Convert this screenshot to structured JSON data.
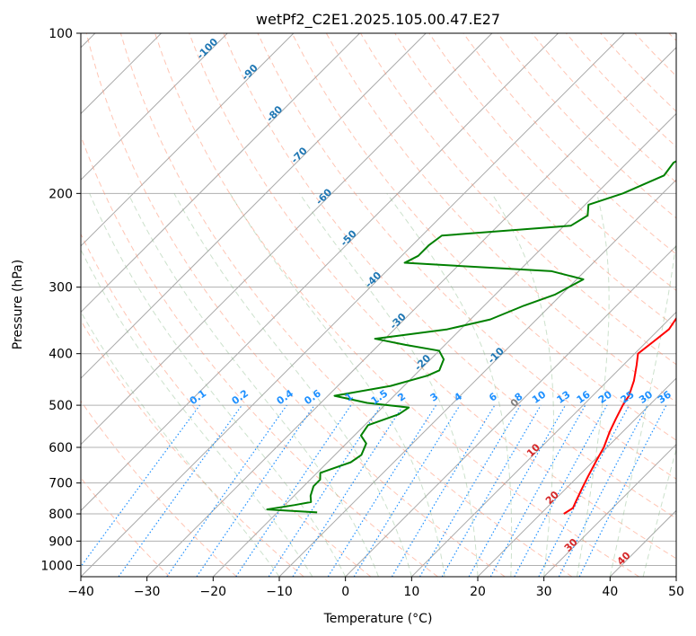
{
  "chart_data": {
    "type": "line",
    "title": "wetPf2_C2E1.2025.105.00.47.E27",
    "xlabel": "Temperature (°C)",
    "ylabel": "Pressure (hPa)",
    "xlim": [
      -40,
      50
    ],
    "ylim": [
      1050,
      100
    ],
    "y_scale": "log",
    "grid": true,
    "x_ticks": [
      -40,
      -30,
      -20,
      -10,
      0,
      10,
      20,
      30,
      40,
      50
    ],
    "y_ticks": [
      100,
      200,
      300,
      400,
      500,
      600,
      700,
      800,
      900,
      1000
    ],
    "colors": {
      "temperature": "#ff0000",
      "dewpoint": "#008000",
      "dry_adiabat": "#ff8c69",
      "moist_adiabat": "#8fbc8f",
      "mixing_ratio": "#1e90ff",
      "isotherm": "#a9a9a9",
      "label_negative": "#1f77b4",
      "label_positive": "#d62728",
      "label_zero": "#808080"
    },
    "series": [
      {
        "role": "temperature",
        "points": [
          [
            6.0,
            100
          ],
          [
            5.5,
            110
          ],
          [
            5.0,
            120
          ],
          [
            5.5,
            140
          ],
          [
            6.0,
            160
          ],
          [
            7.0,
            180
          ],
          [
            8.0,
            200
          ],
          [
            9.5,
            220
          ],
          [
            11.0,
            240
          ],
          [
            12.0,
            255
          ],
          [
            11.5,
            270
          ],
          [
            10.5,
            300
          ],
          [
            10.5,
            330
          ],
          [
            11.5,
            360
          ],
          [
            11.0,
            380
          ],
          [
            10.5,
            400
          ],
          [
            12.0,
            420
          ],
          [
            14.0,
            450
          ],
          [
            15.5,
            480
          ],
          [
            16.0,
            500
          ],
          [
            17.0,
            530
          ],
          [
            18.0,
            560
          ],
          [
            19.5,
            600
          ],
          [
            20.5,
            640
          ],
          [
            21.5,
            680
          ],
          [
            22.5,
            720
          ],
          [
            23.5,
            760
          ],
          [
            24.0,
            780
          ],
          [
            23.5,
            800
          ]
        ]
      },
      {
        "role": "dewpoint",
        "points": [
          [
            0.5,
            100
          ],
          [
            -2.0,
            110
          ],
          [
            -4.5,
            125
          ],
          [
            -6.5,
            140
          ],
          [
            -8.5,
            155
          ],
          [
            -11.0,
            165
          ],
          [
            -13.0,
            175
          ],
          [
            -12.5,
            185
          ],
          [
            -16.0,
            200
          ],
          [
            -19.5,
            210
          ],
          [
            -18.0,
            220
          ],
          [
            -19.0,
            230
          ],
          [
            -37.0,
            240
          ],
          [
            -37.5,
            250
          ],
          [
            -37.5,
            262
          ],
          [
            -38.5,
            270
          ],
          [
            -15.0,
            280
          ],
          [
            -9.0,
            290
          ],
          [
            -11.0,
            310
          ],
          [
            -14.0,
            325
          ],
          [
            -17.0,
            345
          ],
          [
            -22.0,
            360
          ],
          [
            -31.5,
            375
          ],
          [
            -26.0,
            385
          ],
          [
            -20.0,
            395
          ],
          [
            -18.0,
            410
          ],
          [
            -17.0,
            430
          ],
          [
            -18.0,
            440
          ],
          [
            -22.0,
            460
          ],
          [
            -29.0,
            480
          ],
          [
            -23.0,
            495
          ],
          [
            -16.0,
            505
          ],
          [
            -16.5,
            520
          ],
          [
            -19.5,
            545
          ],
          [
            -19.0,
            570
          ],
          [
            -17.0,
            590
          ],
          [
            -16.0,
            620
          ],
          [
            -16.5,
            640
          ],
          [
            -19.5,
            670
          ],
          [
            -18.5,
            690
          ],
          [
            -18.5,
            710
          ],
          [
            -17.5,
            740
          ],
          [
            -16.5,
            760
          ],
          [
            -18.5,
            770
          ],
          [
            -22.0,
            785
          ],
          [
            -14.0,
            795
          ]
        ]
      }
    ],
    "dry_adiabat_labels": [
      {
        "text": "-100",
        "value": -100
      },
      {
        "text": "-90",
        "value": -90
      },
      {
        "text": "-80",
        "value": -80
      },
      {
        "text": "-70",
        "value": -70
      },
      {
        "text": "-60",
        "value": -60
      },
      {
        "text": "-50",
        "value": -50
      },
      {
        "text": "-40",
        "value": -40
      },
      {
        "text": "-30",
        "value": -30
      },
      {
        "text": "-20",
        "value": -20
      },
      {
        "text": "-10",
        "value": -10
      },
      {
        "text": "0",
        "value": 0
      },
      {
        "text": "10",
        "value": 10
      },
      {
        "text": "20",
        "value": 20
      },
      {
        "text": "30",
        "value": 30
      },
      {
        "text": "40",
        "value": 40
      }
    ],
    "mixing_ratio_labels": [
      "0.1",
      "0.2",
      "0.4",
      "0.6",
      "1",
      "1.5",
      "2",
      "3",
      "4",
      "6",
      "8",
      "10",
      "13",
      "16",
      "20",
      "25",
      "30",
      "36"
    ]
  }
}
